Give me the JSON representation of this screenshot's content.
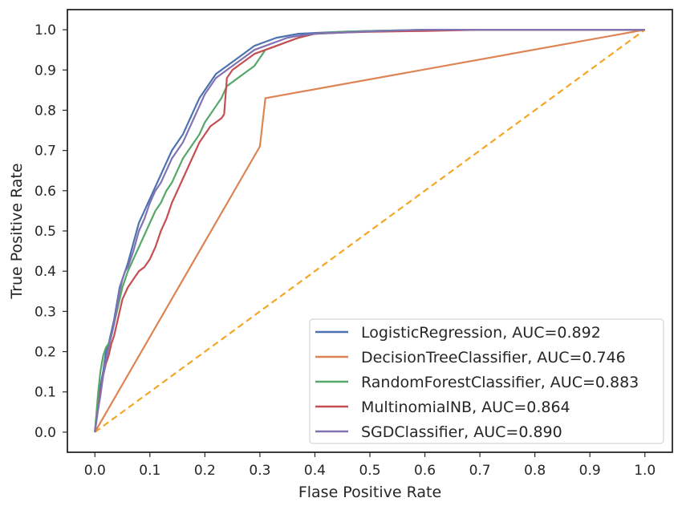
{
  "chart_data": {
    "type": "line",
    "title": "",
    "xlabel": "Flase Positive Rate",
    "ylabel": "True Positive Rate",
    "xlim": [
      -0.05,
      1.05
    ],
    "ylim": [
      -0.05,
      1.05
    ],
    "xticks": [
      "0.0",
      "0.1",
      "0.2",
      "0.3",
      "0.4",
      "0.5",
      "0.6",
      "0.7",
      "0.8",
      "0.9",
      "1.0"
    ],
    "yticks": [
      "0.0",
      "0.1",
      "0.2",
      "0.3",
      "0.4",
      "0.5",
      "0.6",
      "0.7",
      "0.8",
      "0.9",
      "1.0"
    ],
    "grid": false,
    "legend_position": "lower-right",
    "series": [
      {
        "name": "LogisticRegression, AUC=0.892",
        "color": "#4c72b0",
        "x": [
          0,
          0.002,
          0.004,
          0.008,
          0.015,
          0.02,
          0.025,
          0.03,
          0.035,
          0.04,
          0.045,
          0.05,
          0.055,
          0.06,
          0.07,
          0.08,
          0.09,
          0.1,
          0.11,
          0.12,
          0.13,
          0.14,
          0.15,
          0.16,
          0.17,
          0.18,
          0.19,
          0.2,
          0.21,
          0.22,
          0.23,
          0.24,
          0.25,
          0.27,
          0.29,
          0.31,
          0.33,
          0.35,
          0.37,
          0.4,
          0.45,
          0.5,
          0.6,
          0.7,
          0.8,
          0.9,
          1.0
        ],
        "y": [
          0,
          0.03,
          0.06,
          0.1,
          0.15,
          0.2,
          0.22,
          0.25,
          0.28,
          0.32,
          0.36,
          0.38,
          0.4,
          0.42,
          0.47,
          0.52,
          0.55,
          0.58,
          0.61,
          0.64,
          0.67,
          0.7,
          0.72,
          0.74,
          0.77,
          0.8,
          0.83,
          0.85,
          0.87,
          0.89,
          0.9,
          0.91,
          0.92,
          0.94,
          0.96,
          0.97,
          0.98,
          0.985,
          0.99,
          0.992,
          0.995,
          0.997,
          1.0,
          1.0,
          1.0,
          1.0,
          1.0
        ]
      },
      {
        "name": "DecisionTreeClassifier, AUC=0.746",
        "color": "#dd8452",
        "x": [
          0,
          0.3,
          0.31,
          1.0
        ],
        "y": [
          0,
          0.71,
          0.83,
          1.0
        ]
      },
      {
        "name": "RandomForestClassifier, AUC=0.883",
        "color": "#55a868",
        "x": [
          0,
          0.003,
          0.006,
          0.01,
          0.015,
          0.02,
          0.025,
          0.03,
          0.035,
          0.04,
          0.045,
          0.05,
          0.06,
          0.07,
          0.08,
          0.09,
          0.1,
          0.11,
          0.12,
          0.13,
          0.14,
          0.15,
          0.16,
          0.17,
          0.18,
          0.19,
          0.2,
          0.21,
          0.22,
          0.23,
          0.24,
          0.25,
          0.26,
          0.27,
          0.28,
          0.29,
          0.3,
          0.31,
          0.33,
          0.35,
          0.37,
          0.4,
          0.45,
          0.5,
          0.6,
          0.7,
          0.8,
          0.9,
          1.0
        ],
        "y": [
          0,
          0.05,
          0.1,
          0.15,
          0.19,
          0.21,
          0.22,
          0.24,
          0.27,
          0.3,
          0.33,
          0.36,
          0.4,
          0.43,
          0.46,
          0.49,
          0.52,
          0.55,
          0.57,
          0.6,
          0.62,
          0.65,
          0.68,
          0.7,
          0.72,
          0.74,
          0.77,
          0.79,
          0.81,
          0.83,
          0.86,
          0.87,
          0.88,
          0.89,
          0.9,
          0.91,
          0.93,
          0.95,
          0.96,
          0.97,
          0.98,
          0.99,
          0.995,
          0.997,
          1.0,
          1.0,
          1.0,
          1.0,
          1.0
        ]
      },
      {
        "name": "MultinomialNB, AUC=0.864",
        "color": "#c44e52",
        "x": [
          0,
          0.003,
          0.006,
          0.01,
          0.015,
          0.02,
          0.025,
          0.03,
          0.035,
          0.04,
          0.045,
          0.05,
          0.06,
          0.07,
          0.08,
          0.09,
          0.1,
          0.11,
          0.12,
          0.13,
          0.14,
          0.15,
          0.16,
          0.17,
          0.18,
          0.19,
          0.2,
          0.21,
          0.22,
          0.23,
          0.235,
          0.24,
          0.25,
          0.27,
          0.29,
          0.31,
          0.33,
          0.35,
          0.37,
          0.4,
          0.45,
          0.5,
          0.6,
          0.7,
          0.8,
          0.9,
          1.0
        ],
        "y": [
          0,
          0.03,
          0.06,
          0.1,
          0.14,
          0.17,
          0.19,
          0.22,
          0.24,
          0.27,
          0.3,
          0.33,
          0.36,
          0.38,
          0.4,
          0.41,
          0.43,
          0.46,
          0.5,
          0.53,
          0.57,
          0.6,
          0.63,
          0.66,
          0.69,
          0.72,
          0.74,
          0.76,
          0.77,
          0.78,
          0.79,
          0.88,
          0.9,
          0.92,
          0.94,
          0.95,
          0.96,
          0.97,
          0.98,
          0.99,
          0.993,
          0.995,
          0.997,
          1.0,
          1.0,
          1.0,
          1.0
        ]
      },
      {
        "name": "SGDClassifier, AUC=0.890",
        "color": "#8172b3",
        "x": [
          0,
          0.002,
          0.005,
          0.01,
          0.015,
          0.02,
          0.025,
          0.03,
          0.035,
          0.04,
          0.045,
          0.05,
          0.055,
          0.06,
          0.07,
          0.08,
          0.09,
          0.1,
          0.11,
          0.12,
          0.13,
          0.14,
          0.15,
          0.16,
          0.17,
          0.18,
          0.19,
          0.2,
          0.21,
          0.22,
          0.23,
          0.24,
          0.25,
          0.27,
          0.29,
          0.31,
          0.33,
          0.35,
          0.37,
          0.4,
          0.45,
          0.5,
          0.6,
          0.7,
          0.8,
          0.9,
          1.0
        ],
        "y": [
          0,
          0.02,
          0.05,
          0.09,
          0.14,
          0.18,
          0.21,
          0.24,
          0.27,
          0.31,
          0.35,
          0.38,
          0.4,
          0.41,
          0.45,
          0.5,
          0.53,
          0.57,
          0.6,
          0.62,
          0.65,
          0.68,
          0.7,
          0.72,
          0.75,
          0.78,
          0.81,
          0.84,
          0.86,
          0.88,
          0.89,
          0.9,
          0.91,
          0.93,
          0.95,
          0.96,
          0.97,
          0.98,
          0.985,
          0.99,
          0.993,
          0.996,
          1.0,
          1.0,
          1.0,
          1.0,
          1.0
        ]
      },
      {
        "name": "",
        "color": "#f5a623",
        "dashed": true,
        "x": [
          0,
          1.0
        ],
        "y": [
          0,
          1.0
        ]
      }
    ]
  }
}
